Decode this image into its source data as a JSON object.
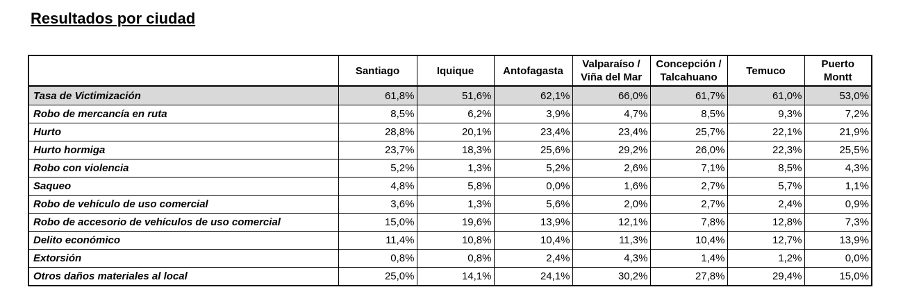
{
  "title": "Resultados por ciudad",
  "columns": [
    "Santiago",
    "Iquique",
    "Antofagasta",
    "Valparaíso / Viña del Mar",
    "Concepción / Talcahuano",
    "Temuco",
    "Puerto Montt"
  ],
  "rows": [
    {
      "label": "Tasa de Victimización",
      "values": [
        "61,8%",
        "51,6%",
        "62,1%",
        "66,0%",
        "61,7%",
        "61,0%",
        "53,0%"
      ]
    },
    {
      "label": "Robo de mercancía en ruta",
      "values": [
        "8,5%",
        "6,2%",
        "3,9%",
        "4,7%",
        "8,5%",
        "9,3%",
        "7,2%"
      ]
    },
    {
      "label": "Hurto",
      "values": [
        "28,8%",
        "20,1%",
        "23,4%",
        "23,4%",
        "25,7%",
        "22,1%",
        "21,9%"
      ]
    },
    {
      "label": "Hurto hormiga",
      "values": [
        "23,7%",
        "18,3%",
        "25,6%",
        "29,2%",
        "26,0%",
        "22,3%",
        "25,5%"
      ]
    },
    {
      "label": "Robo con violencia",
      "values": [
        "5,2%",
        "1,3%",
        "5,2%",
        "2,6%",
        "7,1%",
        "8,5%",
        "4,3%"
      ]
    },
    {
      "label": "Saqueo",
      "values": [
        "4,8%",
        "5,8%",
        "0,0%",
        "1,6%",
        "2,7%",
        "5,7%",
        "1,1%"
      ]
    },
    {
      "label": "Robo de vehículo de uso comercial",
      "values": [
        "3,6%",
        "1,3%",
        "5,6%",
        "2,0%",
        "2,7%",
        "2,4%",
        "0,9%"
      ]
    },
    {
      "label": "Robo de accesorio de vehículos de uso comercial",
      "values": [
        "15,0%",
        "19,6%",
        "13,9%",
        "12,1%",
        "7,8%",
        "12,8%",
        "7,3%"
      ]
    },
    {
      "label": "Delito económico",
      "values": [
        "11,4%",
        "10,8%",
        "10,4%",
        "11,3%",
        "10,4%",
        "12,7%",
        "13,9%"
      ]
    },
    {
      "label": "Extorsión",
      "values": [
        "0,8%",
        "0,8%",
        "2,4%",
        "4,3%",
        "1,4%",
        "1,2%",
        "0,0%"
      ]
    },
    {
      "label": "Otros daños materiales al local",
      "values": [
        "25,0%",
        "14,1%",
        "24,1%",
        "30,2%",
        "27,8%",
        "29,4%",
        "15,0%"
      ]
    }
  ],
  "highlight_color": "#d9d9d9"
}
